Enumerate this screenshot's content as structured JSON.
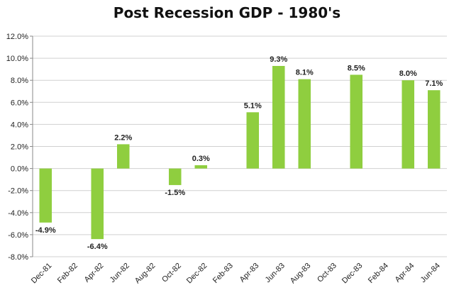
{
  "chart_data": {
    "type": "bar",
    "title": "Post Recession GDP - 1980's",
    "xlabel": "",
    "ylabel": "",
    "categories": [
      "Dec-81",
      "Feb-82",
      "Apr-82",
      "Jun-82",
      "Aug-82",
      "Oct-82",
      "Dec-82",
      "Feb-83",
      "Apr-83",
      "Jun-83",
      "Aug-83",
      "Oct-83",
      "Dec-83",
      "Feb-84",
      "Apr-84",
      "Jun-84"
    ],
    "values": [
      -4.9,
      null,
      -6.4,
      2.2,
      null,
      -1.5,
      0.3,
      null,
      5.1,
      9.3,
      8.1,
      null,
      8.5,
      null,
      8.0,
      7.1
    ],
    "data_labels": [
      "-4.9%",
      "",
      "-6.4%",
      "2.2%",
      "",
      "-1.5%",
      "0.3%",
      "",
      "5.1%",
      "9.3%",
      "8.1%",
      "",
      "8.5%",
      "",
      "8.0%",
      "7.1%"
    ],
    "ylim": [
      -8,
      12
    ],
    "ytick_values": [
      -8,
      -6,
      -4,
      -2,
      0,
      2,
      4,
      6,
      8,
      10,
      12
    ],
    "ytick_labels": [
      "-8.0%",
      "-6.0%",
      "-4.0%",
      "-2.0%",
      "0.0%",
      "2.0%",
      "4.0%",
      "6.0%",
      "8.0%",
      "10.0%",
      "12.0%"
    ],
    "grid": true,
    "bar_color": "#8fce3f",
    "grid_color": "#d0d0d0"
  }
}
